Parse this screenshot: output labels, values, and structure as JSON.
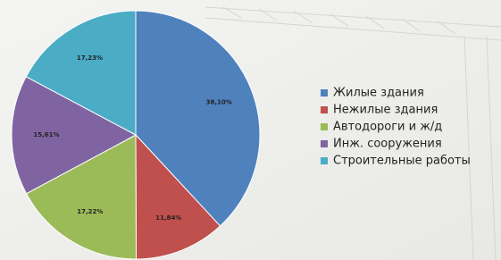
{
  "chart_data": {
    "type": "pie",
    "categories": [
      "Жилые здания",
      "Нежилые здания",
      "Автодороги  и ж/д",
      "Инж. сооружения",
      "Строительные работы"
    ],
    "values": [
      38.1,
      11.84,
      17.22,
      15.61,
      17.23
    ],
    "value_labels": [
      "38,10%",
      "11,84%",
      "17,22%",
      "15,61%",
      "17,23%"
    ],
    "colors": [
      "#4f81bd",
      "#c0504d",
      "#9bbb59",
      "#8064a2",
      "#4bacc6"
    ],
    "legend": "right"
  }
}
